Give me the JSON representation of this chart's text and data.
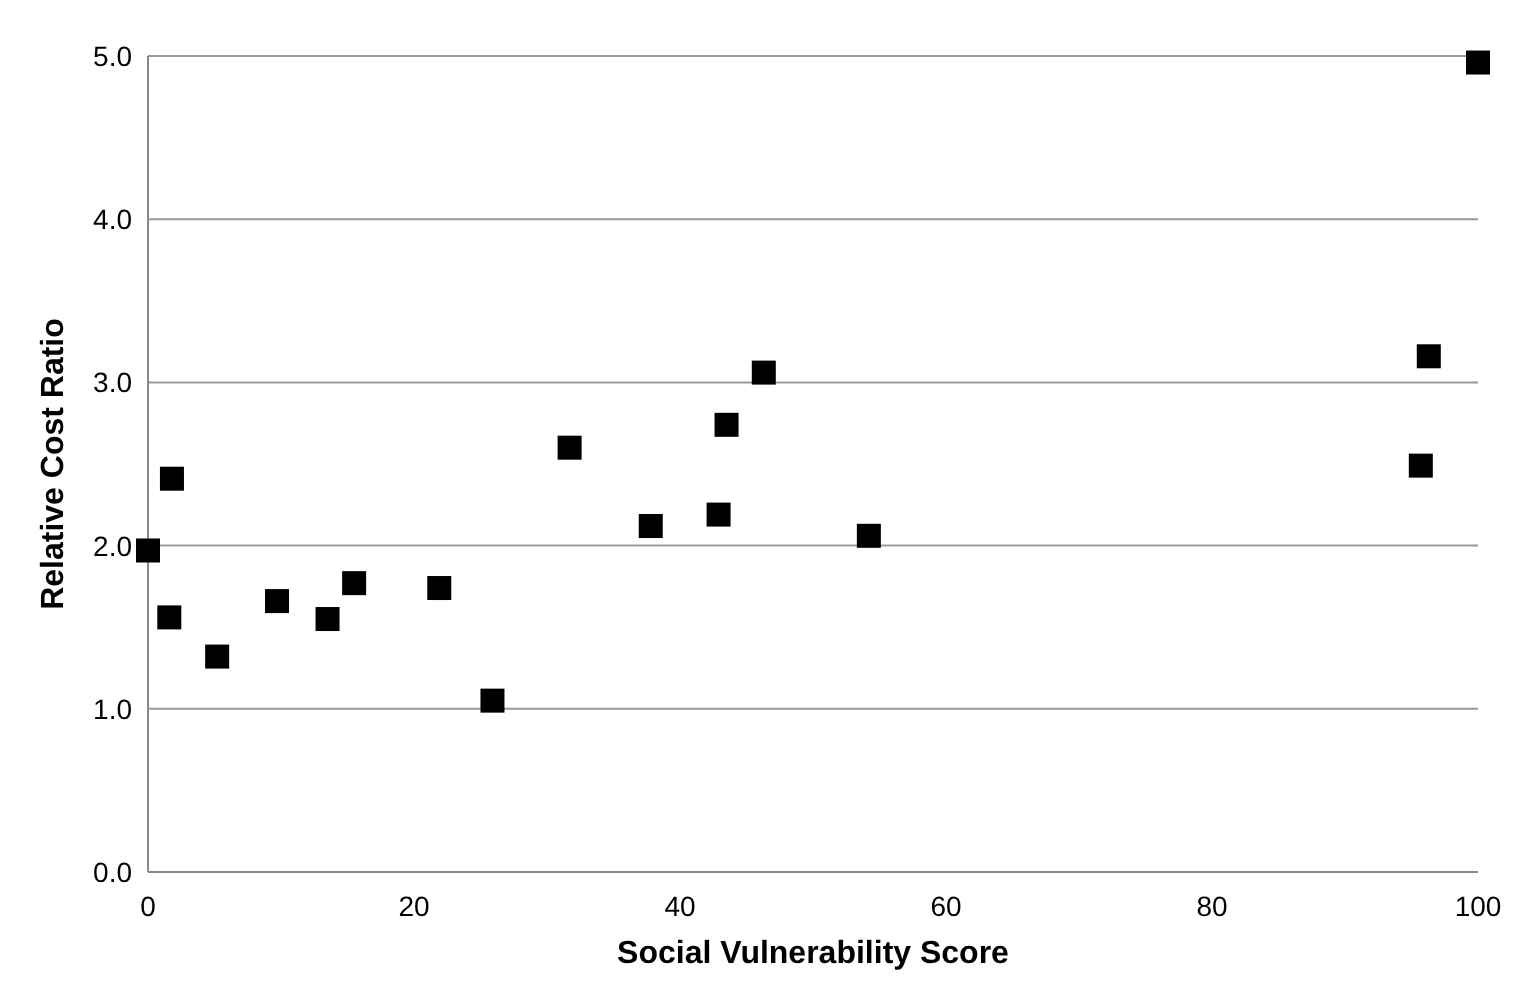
{
  "chart_data": {
    "type": "scatter",
    "xlabel": "Social Vulnerability Score",
    "ylabel": "Relative Cost Ratio",
    "x": [
      0,
      1.6,
      1.8,
      5.2,
      9.7,
      13.5,
      15.5,
      21.9,
      25.9,
      31.7,
      37.8,
      42.9,
      43.5,
      46.3,
      54.2,
      95.7,
      96.3,
      100
    ],
    "series": [
      {
        "color": "#000000",
        "values": [
          1.97,
          1.56,
          2.41,
          1.32,
          1.66,
          1.55,
          1.77,
          1.74,
          1.05,
          2.6,
          2.12,
          2.19,
          2.74,
          3.06,
          2.06,
          2.49,
          3.16,
          4.96
        ]
      }
    ],
    "xlim": [
      0,
      100
    ],
    "xticks": [
      0,
      20,
      40,
      60,
      80,
      100
    ],
    "ylim": [
      0,
      5
    ],
    "yticks": [
      {
        "value": 0,
        "label": "0.0"
      },
      {
        "value": 1,
        "label": "1.0"
      },
      {
        "value": 2,
        "label": "2.0"
      },
      {
        "value": 3,
        "label": "3.0"
      },
      {
        "value": 4,
        "label": "4.0"
      },
      {
        "value": 5,
        "label": "5.0"
      }
    ],
    "grid": "y",
    "marker": "square",
    "legend": false
  }
}
